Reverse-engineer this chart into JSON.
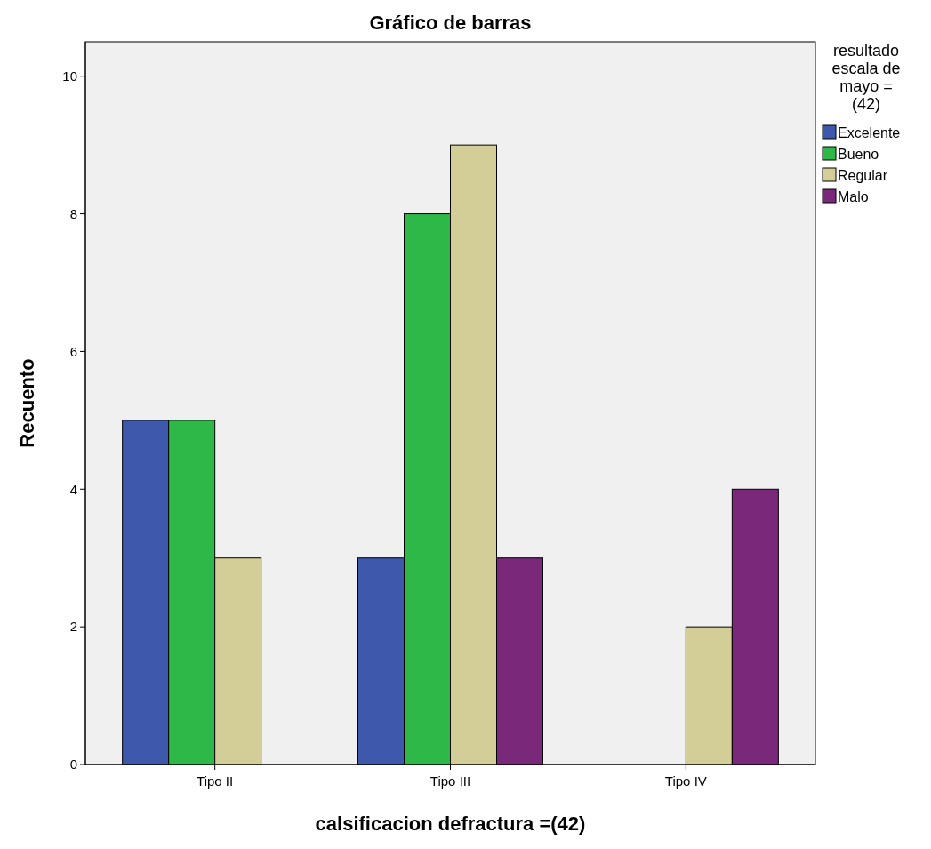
{
  "chart_data": {
    "type": "bar",
    "title": "Gráfico de barras",
    "xlabel": "calsificacion defractura =(42)",
    "ylabel": "Recuento",
    "legend_title": "resultado escala de mayo = (42)",
    "categories": [
      "Tipo II",
      "Tipo III",
      "Tipo IV"
    ],
    "series": [
      {
        "name": "Excelente",
        "color": "#3e58ac",
        "values": [
          5,
          3,
          null
        ]
      },
      {
        "name": "Bueno",
        "color": "#2eb848",
        "values": [
          5,
          8,
          null
        ]
      },
      {
        "name": "Regular",
        "color": "#d3ce97",
        "values": [
          3,
          9,
          2
        ]
      },
      {
        "name": "Malo",
        "color": "#79287a",
        "values": [
          null,
          3,
          4
        ]
      }
    ],
    "ylim": [
      0,
      10.5
    ],
    "yticks": [
      0,
      2,
      4,
      6,
      8,
      10
    ],
    "grid": false,
    "legend": "top right"
  }
}
